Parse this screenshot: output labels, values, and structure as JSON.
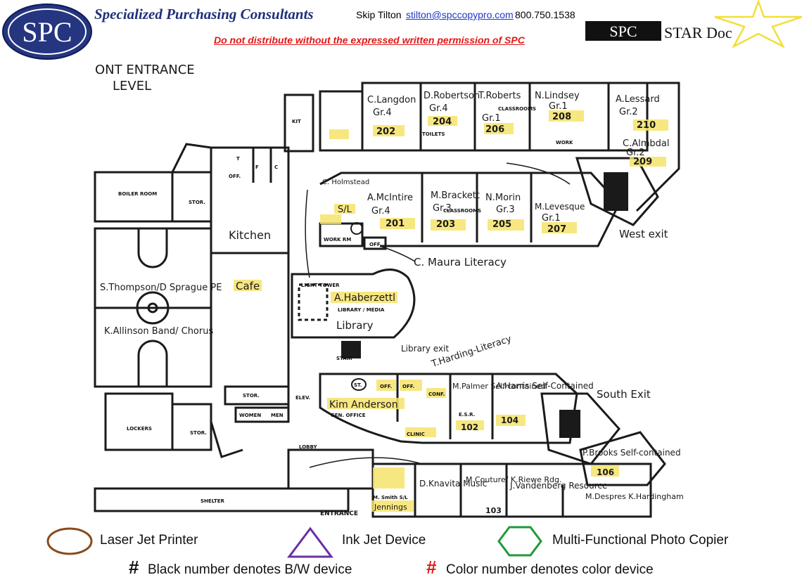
{
  "header": {
    "logo_text": "SPC",
    "company": "Specialized Purchasing Consultants",
    "contact_name": "Skip Tilton",
    "contact_email": "stilton@spccopypro.com",
    "contact_phone": "800.750.1538",
    "warning": "Do not distribute without the expressed written permission of SPC",
    "stardoc_spc": "SPC",
    "stardoc_title": "STAR Doc"
  },
  "map": {
    "level_title_1": "ONT ENTRANCE",
    "level_title_2": "LEVEL",
    "rooms_top": [
      {
        "teacher": "C.Langdon",
        "grade": "Gr.4",
        "number": "202"
      },
      {
        "teacher": "D.Robertson",
        "grade": "Gr.4",
        "number": "204"
      },
      {
        "teacher": "T.Roberts",
        "grade": "Gr.1",
        "number": "206"
      },
      {
        "teacher": "N.Lindsey",
        "grade": "Gr.1",
        "number": "208"
      },
      {
        "teacher": "A.Lessard",
        "grade": "Gr.2",
        "number": "210"
      }
    ],
    "room_209": {
      "teacher": "C.Almbdal",
      "grade": "Gr.2",
      "number": "209"
    },
    "rooms_mid": [
      {
        "teacher": "A.McIntire",
        "grade": "Gr.4",
        "number": "201"
      },
      {
        "teacher": "M.Brackett",
        "grade": "Gr.3",
        "number": "203"
      },
      {
        "teacher": "N.Morin",
        "grade": "Gr.3",
        "number": "205"
      },
      {
        "teacher": "M.Levesque",
        "grade": "Gr.1",
        "number": "207"
      }
    ],
    "holmstead": "C. Holmstead",
    "sl": "S/L",
    "work_rm": "WORK RM",
    "off": "OFF.",
    "kitchen": "Kitchen",
    "cafe": "Cafe",
    "boiler": "BOILER ROOM",
    "stor": "STOR.",
    "gym_1": "S.Thompson/D Sprague PE",
    "gym_2": "K.Allinson Band/ Chorus",
    "c_maura": "C. Maura Literacy",
    "haberzettl": "A.Haberzettl",
    "library_label": "LIBRARY / MEDIA",
    "library": "Library",
    "light_tower": "LIGHT TOWER",
    "library_exit": "Library exit",
    "t_harding": "T.Harding-Literacy",
    "kim_anderson": "Kim Anderson",
    "gen_office": "GEN. OFFICE",
    "conf": "CONF.",
    "clinic": "CLINIC",
    "m_palmer": "M.Palmer Self-contained",
    "palmer_num": "102",
    "a_harris": "A.Harris Self-Contained",
    "harris_num": "104",
    "south_exit": "South Exit",
    "west_exit": "West exit",
    "p_brooks": "P.Brooks Self-contained",
    "brooks_num": "106",
    "m_smith": "M. Smith S/L",
    "jennings": "Jennings",
    "d_knavita": "D.Knavita Music",
    "m_couture": "M.Couture/ K.Riewe Rdg.",
    "couture_num": "103",
    "j_vandenberg": "J.Vandenberg Resource",
    "m_despres": "M.Despres K.Hardingham",
    "entrance": "ENTRANCE",
    "lobby": "LOBBY",
    "shelter": "SHELTER",
    "lockers": "LOCKERS",
    "elev": "ELEV.",
    "toilets": "TOILETS",
    "classrooms": "CLASSROOMS",
    "women": "WOMEN",
    "men": "MEN",
    "work": "WORK",
    "stair": "STAIR",
    "st": "ST.",
    "esr": "E.S.R.",
    "kit": "KIT",
    "f": "F",
    "c": "C",
    "t": "T"
  },
  "legend": {
    "laser": "Laser Jet Printer",
    "inkjet": "Ink Jet Device",
    "mfp": "Multi-Functional Photo Copier",
    "black_hash": "#",
    "black_note": "Black number denotes B/W device",
    "color_hash": "#",
    "color_note": "Color number denotes color device",
    "colors": {
      "laser": "#8a4a1c",
      "inkjet": "#6a2fa3",
      "mfp": "#1f9a3a",
      "red": "#e01818",
      "navy": "#1f2f7a",
      "highlight": "#f6e36a"
    }
  }
}
